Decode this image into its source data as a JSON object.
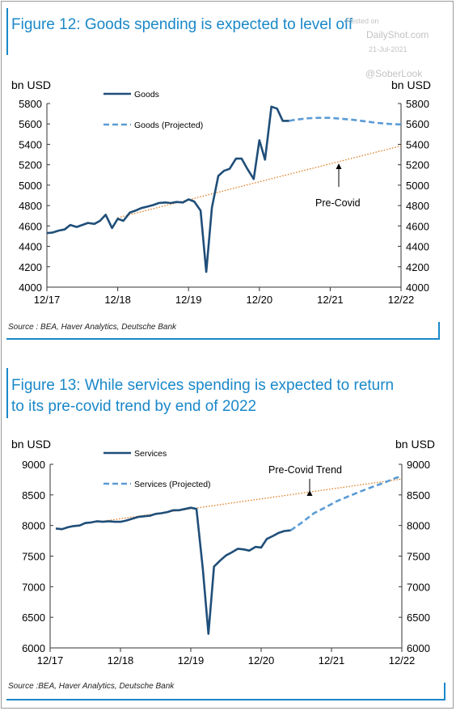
{
  "figure1": {
    "title": "Figure 12: Goods spending is expected to level off",
    "source": "Source : BEA, Haver Analytics, Deutsche Bank"
  },
  "figure2": {
    "title_line1": "Figure 13: While services spending is expected to return",
    "title_line2": "to its pre-covid trend by end of 2022",
    "source": "Source :BEA, Haver Analytics, Deutsche Bank"
  },
  "watermark": {
    "posted_on": "Posted on",
    "site": "DailyShot.com",
    "date": "21-Jul-2021",
    "handle": "@SoberLook"
  },
  "colors": {
    "accent": "#1a88c9",
    "actual": "#1f4e79",
    "projected": "#5b9bd5",
    "trend": "#e07b1e"
  },
  "chart_data": [
    {
      "type": "line",
      "ylabel_left": "bn USD",
      "ylabel_right": "bn USD",
      "xlim": [
        2018.0,
        2023.0
      ],
      "ylim": [
        4000,
        5800
      ],
      "yticks": [
        4000,
        4200,
        4400,
        4600,
        4800,
        5000,
        5200,
        5400,
        5600,
        5800
      ],
      "xticks": [
        {
          "value": 2018.0,
          "label": "12/17"
        },
        {
          "value": 2019.0,
          "label": "12/18"
        },
        {
          "value": 2020.0,
          "label": "12/19"
        },
        {
          "value": 2021.0,
          "label": "12/20"
        },
        {
          "value": 2022.0,
          "label": "12/21"
        },
        {
          "value": 2023.0,
          "label": "12/22"
        }
      ],
      "series": [
        {
          "name": "Goods",
          "style": "solid",
          "x": [
            2018.0,
            2018.08,
            2018.17,
            2018.25,
            2018.33,
            2018.42,
            2018.5,
            2018.58,
            2018.67,
            2018.75,
            2018.83,
            2018.92,
            2019.0,
            2019.08,
            2019.17,
            2019.25,
            2019.33,
            2019.42,
            2019.5,
            2019.58,
            2019.67,
            2019.75,
            2019.83,
            2019.92,
            2020.0,
            2020.08,
            2020.17,
            2020.25,
            2020.33,
            2020.42,
            2020.5,
            2020.58,
            2020.67,
            2020.75,
            2020.83,
            2020.92,
            2021.0,
            2021.08,
            2021.17,
            2021.25,
            2021.33,
            2021.42
          ],
          "y": [
            4530,
            4535,
            4555,
            4565,
            4610,
            4590,
            4610,
            4630,
            4620,
            4650,
            4710,
            4580,
            4670,
            4650,
            4730,
            4750,
            4775,
            4790,
            4805,
            4825,
            4830,
            4825,
            4835,
            4830,
            4860,
            4840,
            4750,
            4150,
            4780,
            5090,
            5140,
            5160,
            5260,
            5260,
            5160,
            5060,
            5440,
            5250,
            5770,
            5750,
            5630,
            5630
          ]
        },
        {
          "name": "Goods (Projected)",
          "style": "dashed",
          "x": [
            2021.42,
            2021.5,
            2021.67,
            2021.83,
            2022.0,
            2022.17,
            2022.33,
            2022.5,
            2022.67,
            2022.83,
            2023.0
          ],
          "y": [
            5630,
            5640,
            5655,
            5660,
            5660,
            5650,
            5640,
            5625,
            5610,
            5600,
            5595
          ]
        },
        {
          "name": "Pre-Covid",
          "style": "dotted",
          "x": [
            2019.0,
            2023.0
          ],
          "y": [
            4680,
            5385
          ]
        }
      ],
      "legend": [
        "Goods",
        "Goods (Projected)"
      ],
      "annotations": [
        {
          "text": "Pre-Covid",
          "x": 2022.2,
          "y": 5200
        }
      ]
    },
    {
      "type": "line",
      "ylabel_left": "bn USD",
      "ylabel_right": "bn USD",
      "xlim": [
        2018.0,
        2023.0
      ],
      "ylim": [
        6000,
        9000
      ],
      "yticks": [
        6000,
        6500,
        7000,
        7500,
        8000,
        8500,
        9000
      ],
      "xticks": [
        {
          "value": 2018.0,
          "label": "12/17"
        },
        {
          "value": 2019.0,
          "label": "12/18"
        },
        {
          "value": 2020.0,
          "label": "12/19"
        },
        {
          "value": 2021.0,
          "label": "12/20"
        },
        {
          "value": 2022.0,
          "label": "12/21"
        },
        {
          "value": 2023.0,
          "label": "12/22"
        }
      ],
      "series": [
        {
          "name": "Services",
          "style": "solid",
          "x": [
            2018.08,
            2018.17,
            2018.25,
            2018.33,
            2018.42,
            2018.5,
            2018.58,
            2018.67,
            2018.75,
            2018.83,
            2018.92,
            2019.0,
            2019.08,
            2019.17,
            2019.25,
            2019.33,
            2019.42,
            2019.5,
            2019.58,
            2019.67,
            2019.75,
            2019.83,
            2019.92,
            2020.0,
            2020.08,
            2020.17,
            2020.25,
            2020.33,
            2020.42,
            2020.5,
            2020.58,
            2020.67,
            2020.75,
            2020.83,
            2020.92,
            2021.0,
            2021.08,
            2021.17,
            2021.25,
            2021.33,
            2021.42
          ],
          "y": [
            7950,
            7940,
            7970,
            7990,
            8000,
            8040,
            8050,
            8070,
            8060,
            8070,
            8060,
            8060,
            8080,
            8110,
            8140,
            8150,
            8160,
            8190,
            8200,
            8220,
            8250,
            8250,
            8270,
            8290,
            8270,
            7300,
            6230,
            7330,
            7430,
            7510,
            7560,
            7620,
            7610,
            7590,
            7650,
            7640,
            7780,
            7830,
            7880,
            7910,
            7920
          ]
        },
        {
          "name": "Services (Projected)",
          "style": "dashed",
          "x": [
            2021.42,
            2021.58,
            2021.75,
            2021.92,
            2022.08,
            2022.25,
            2022.42,
            2022.58,
            2022.75,
            2022.92,
            2023.0
          ],
          "y": [
            7920,
            8050,
            8200,
            8300,
            8400,
            8480,
            8560,
            8630,
            8700,
            8780,
            8800
          ]
        },
        {
          "name": "Pre-Covid Trend",
          "style": "dotted",
          "x": [
            2018.5,
            2023.0
          ],
          "y": [
            8030,
            8760
          ]
        }
      ],
      "legend": [
        "Services",
        "Services (Projected)"
      ],
      "annotations": [
        {
          "text": "Pre-Covid Trend",
          "x": 2021.7,
          "y": 8700
        }
      ]
    }
  ]
}
